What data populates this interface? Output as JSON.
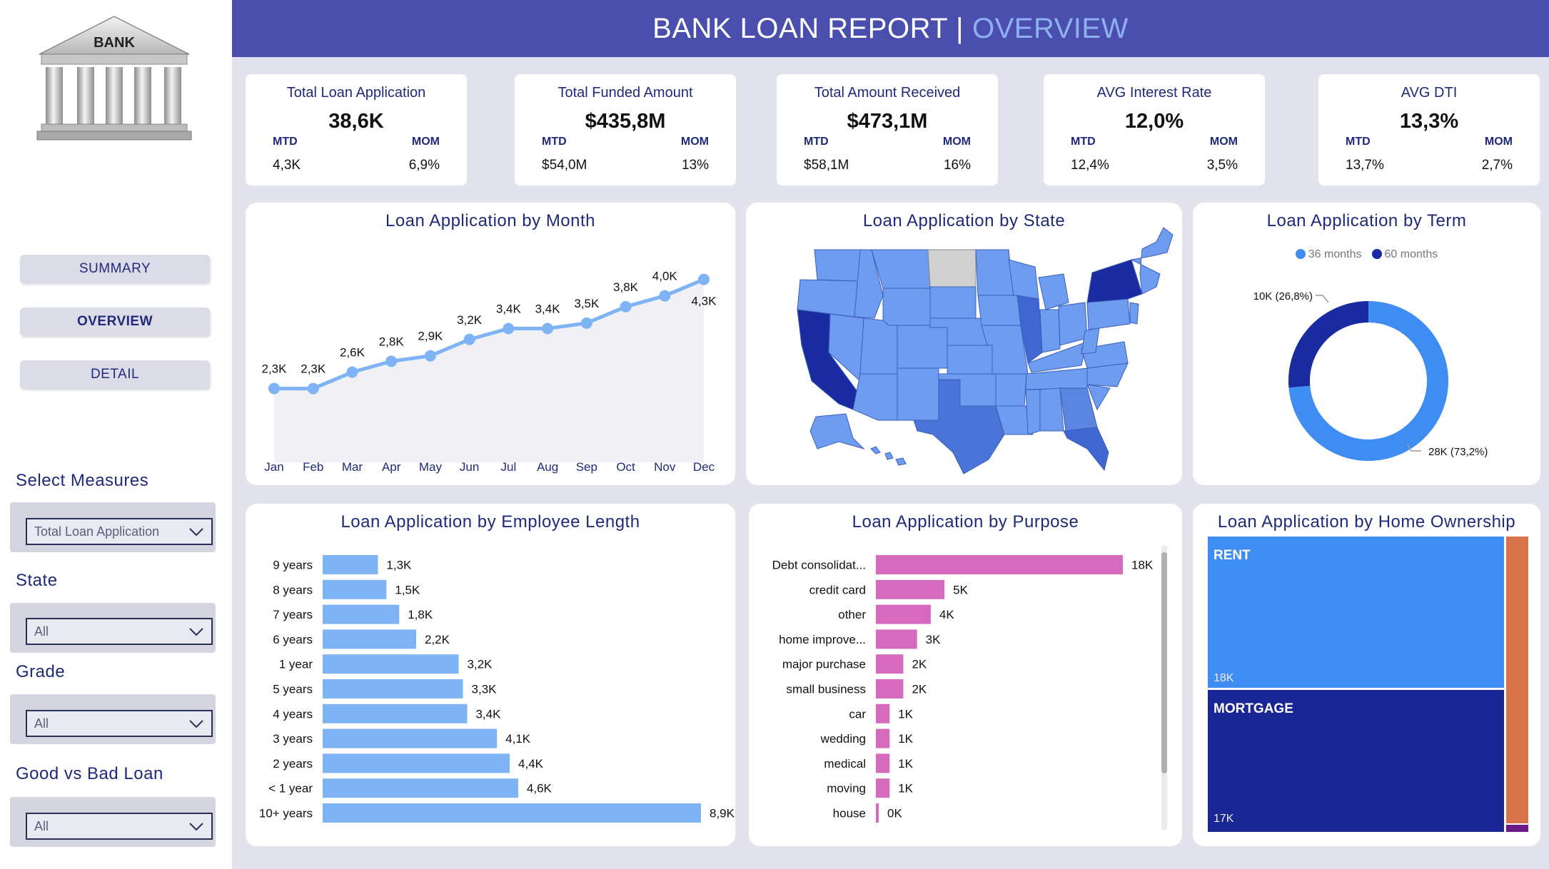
{
  "header": {
    "title_main": "BANK LOAN REPORT |",
    "title_accent": "OVERVIEW"
  },
  "logo": {
    "text": "BANK"
  },
  "nav": {
    "summary": "SUMMARY",
    "overview": "OVERVIEW",
    "detail": "DETAIL"
  },
  "filters": {
    "measures": {
      "label": "Select Measures",
      "value": "Total Loan Application"
    },
    "state": {
      "label": "State",
      "value": "All"
    },
    "grade": {
      "label": "Grade",
      "value": "All"
    },
    "good_bad": {
      "label": "Good vs Bad Loan",
      "value": "All"
    }
  },
  "kpis": [
    {
      "title": "Total Loan Application",
      "value": "38,6K",
      "mtd_label": "MTD",
      "mtd": "4,3K",
      "mom_label": "MOM",
      "mom": "6,9%"
    },
    {
      "title": "Total Funded Amount",
      "value": "$435,8M",
      "mtd_label": "MTD",
      "mtd": "$54,0M",
      "mom_label": "MOM",
      "mom": "13%"
    },
    {
      "title": "Total Amount Received",
      "value": "$473,1M",
      "mtd_label": "MTD",
      "mtd": "$58,1M",
      "mom_label": "MOM",
      "mom": "16%"
    },
    {
      "title": "AVG Interest Rate",
      "value": "12,0%",
      "mtd_label": "MTD",
      "mtd": "12,4%",
      "mom_label": "MOM",
      "mom": "3,5%"
    },
    {
      "title": "AVG DTI",
      "value": "13,3%",
      "mtd_label": "MTD",
      "mtd": "13,7%",
      "mom_label": "MOM",
      "mom": "2,7%"
    }
  ],
  "charts": {
    "month_title": "Loan Application by Month",
    "state_title": "Loan Application by State",
    "term_title": "Loan Application by Term",
    "emp_title": "Loan Application by Employee Length",
    "purpose_title": "Loan Application by Purpose",
    "home_title": "Loan Application by Home Ownership"
  },
  "colors": {
    "header": "#4a4fae",
    "line": "#7eb3f5",
    "emp_bar": "#7eb3f5",
    "purpose_bar": "#d66bbd",
    "term_36": "#3f8cf2",
    "term_60": "#1a2aa0",
    "rent": "#3f8cf2",
    "mortgage": "#1a2693",
    "own": "#d9744a",
    "other": "#6a1a8a"
  },
  "chart_data": [
    {
      "type": "line",
      "title": "Loan Application by Month",
      "categories": [
        "Jan",
        "Feb",
        "Mar",
        "Apr",
        "May",
        "Jun",
        "Jul",
        "Aug",
        "Sep",
        "Oct",
        "Nov",
        "Dec"
      ],
      "values": [
        2.3,
        2.3,
        2.6,
        2.8,
        2.9,
        3.2,
        3.4,
        3.4,
        3.5,
        3.8,
        4.0,
        4.3
      ],
      "labels": [
        "2,3K",
        "2,3K",
        "2,6K",
        "2,8K",
        "2,9K",
        "3,2K",
        "3,4K",
        "3,4K",
        "3,5K",
        "3,8K",
        "4,0K",
        "4,3K"
      ]
    },
    {
      "type": "pie",
      "title": "Loan Application by Term",
      "series": [
        {
          "name": "36 months",
          "value": 28,
          "label": "28K (73,2%)"
        },
        {
          "name": "60 months",
          "value": 10,
          "label": "10K (26,8%)"
        }
      ]
    },
    {
      "type": "bar",
      "title": "Loan Application by Employee Length",
      "categories": [
        "9 years",
        "8 years",
        "7 years",
        "6 years",
        "1 year",
        "5 years",
        "4 years",
        "3 years",
        "2 years",
        "< 1 year",
        "10+ years"
      ],
      "values": [
        1.3,
        1.5,
        1.8,
        2.2,
        3.2,
        3.3,
        3.4,
        4.1,
        4.4,
        4.6,
        8.9
      ],
      "labels": [
        "1,3K",
        "1,5K",
        "1,8K",
        "2,2K",
        "3,2K",
        "3,3K",
        "3,4K",
        "4,1K",
        "4,4K",
        "4,6K",
        "8,9K"
      ]
    },
    {
      "type": "bar",
      "title": "Loan Application by Purpose",
      "categories": [
        "Debt consolidat...",
        "credit card",
        "other",
        "home improve...",
        "major purchase",
        "small business",
        "car",
        "wedding",
        "medical",
        "moving",
        "house"
      ],
      "values": [
        18,
        5,
        4,
        3,
        2,
        2,
        1,
        1,
        1,
        1,
        0
      ],
      "labels": [
        "18K",
        "5K",
        "4K",
        "3K",
        "2K",
        "2K",
        "1K",
        "1K",
        "1K",
        "1K",
        "0K"
      ]
    },
    {
      "type": "heatmap",
      "title": "Loan Application by Home Ownership",
      "series": [
        {
          "name": "RENT",
          "value": 18,
          "label": "18K"
        },
        {
          "name": "MORTGAGE",
          "value": 17,
          "label": "17K"
        },
        {
          "name": "",
          "value": 3.5
        },
        {
          "name": "",
          "value": 0.3
        }
      ]
    }
  ]
}
